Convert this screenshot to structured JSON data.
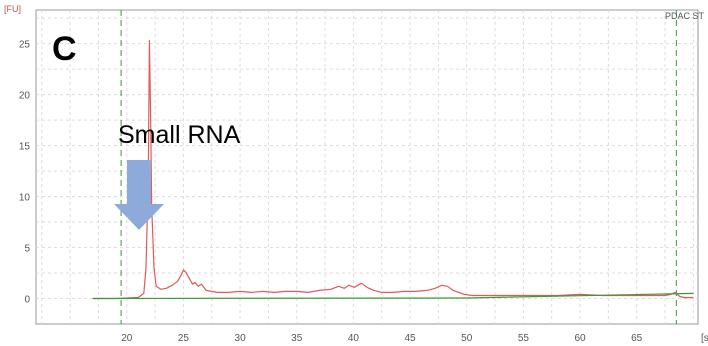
{
  "panel_label": "C",
  "sample_label": "PDAC ST",
  "chart_data": {
    "type": "line",
    "title": "",
    "xlabel": "[s",
    "ylabel": "[FU]",
    "xlim": [
      17,
      70
    ],
    "ylim": [
      -3,
      27
    ],
    "grid": true,
    "x_ticks": [
      20,
      25,
      30,
      35,
      40,
      45,
      50,
      55,
      60,
      65
    ],
    "y_ticks": [
      0,
      5,
      10,
      15,
      20,
      25
    ],
    "x_tick_labels": [
      "20",
      "25",
      "30",
      "35",
      "40",
      "45",
      "50",
      "55",
      "60",
      "65"
    ],
    "y_tick_labels": [
      "0",
      "5",
      "10",
      "15",
      "20",
      "25"
    ],
    "markers": [
      19.5,
      68.5
    ],
    "series": [
      {
        "color": "#e05a5a",
        "x": [
          17,
          19,
          21.0,
          21.5,
          21.7,
          21.9,
          22.0,
          22.1,
          22.2,
          22.4,
          22.6,
          23.0,
          23.5,
          24.0,
          24.5,
          24.8,
          25.0,
          25.2,
          25.5,
          25.8,
          26.0,
          26.3,
          26.6,
          27.0,
          27.5,
          28.0,
          29.0,
          30.0,
          31.0,
          32.0,
          33.0,
          34.0,
          35.0,
          36.0,
          37.0,
          38.0,
          38.7,
          39.2,
          39.6,
          40.1,
          40.7,
          41.2,
          41.8,
          42.5,
          43.5,
          44.5,
          45.5,
          46.5,
          47.2,
          47.8,
          48.3,
          48.8,
          49.3,
          49.8,
          50.5,
          51.0,
          52.0,
          54.0,
          56.0,
          58.0,
          60.0,
          62.0,
          64.0,
          66.0,
          67.5,
          68.0,
          68.4,
          68.8,
          69.2,
          70.0
        ],
        "y": [
          0,
          0,
          0.1,
          0.5,
          3.0,
          12.0,
          25.3,
          18.0,
          9.0,
          3.0,
          1.2,
          0.9,
          1.0,
          1.3,
          1.7,
          2.3,
          2.8,
          2.6,
          2.0,
          1.4,
          1.6,
          1.2,
          1.4,
          0.8,
          0.7,
          0.6,
          0.6,
          0.7,
          0.6,
          0.7,
          0.6,
          0.7,
          0.7,
          0.6,
          0.8,
          0.9,
          1.2,
          1.0,
          1.3,
          1.1,
          1.5,
          1.1,
          0.8,
          0.6,
          0.6,
          0.7,
          0.7,
          0.8,
          1.0,
          1.3,
          1.2,
          0.8,
          0.6,
          0.4,
          0.3,
          0.3,
          0.3,
          0.3,
          0.3,
          0.3,
          0.4,
          0.3,
          0.3,
          0.3,
          0.3,
          0.4,
          0.6,
          0.2,
          0.1,
          0.1
        ]
      },
      {
        "color": "#3a9a3a",
        "x": [
          17,
          50,
          70
        ],
        "y": [
          0,
          0.05,
          0.5
        ]
      }
    ]
  },
  "annotation": {
    "text": "Small RNA",
    "arrow_color": "#8eaadb"
  }
}
